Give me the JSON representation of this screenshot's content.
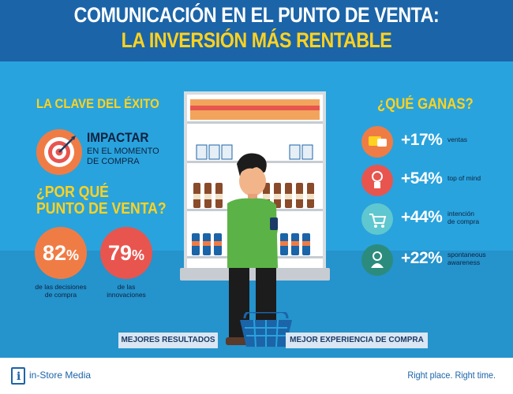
{
  "header": {
    "title_line1": "COMUNICACIÓN EN EL PUNTO DE VENTA:",
    "title_line2": "LA INVERSIÓN MÁS RENTABLE"
  },
  "left": {
    "key_heading": "LA CLAVE DEL ÉXITO",
    "impact_title": "IMPACTAR",
    "impact_sub1": "EN EL MOMENTO",
    "impact_sub2": "DE COMPRA",
    "why_heading1": "¿POR QUÉ",
    "why_heading2": "PUNTO DE VENTA?",
    "stats": [
      {
        "value": "82",
        "unit": "%",
        "caption1": "de las decisiones",
        "caption2": "de compra",
        "color": "#f07c45"
      },
      {
        "value": "79",
        "unit": "%",
        "caption1": "de las",
        "caption2": "innovaciones",
        "color": "#e8554e"
      }
    ]
  },
  "right": {
    "heading": "¿QUÉ GANAS?",
    "gains": [
      {
        "value": "+17%",
        "label1": "ventas",
        "label2": "",
        "icon": "sales-card-icon",
        "color": "#f07c45"
      },
      {
        "value": "+54%",
        "label1": "top of mind",
        "label2": "",
        "icon": "idea-hand-icon",
        "color": "#e8554e"
      },
      {
        "value": "+44%",
        "label1": "intención",
        "label2": "de compra",
        "icon": "shopping-cart-icon",
        "color": "#5fc7cf"
      },
      {
        "value": "+22%",
        "label1": "spontaneous",
        "label2": "awareness",
        "icon": "person-target-icon",
        "color": "#2b8c7e"
      }
    ]
  },
  "bottom": {
    "left_label": "MEJORES RESULTADOS",
    "right_label": "MEJOR EXPERIENCIA DE COMPRA"
  },
  "footer": {
    "brand": "in-Store Media",
    "logo_letter": "i",
    "tagline": "Right place. Right time."
  }
}
